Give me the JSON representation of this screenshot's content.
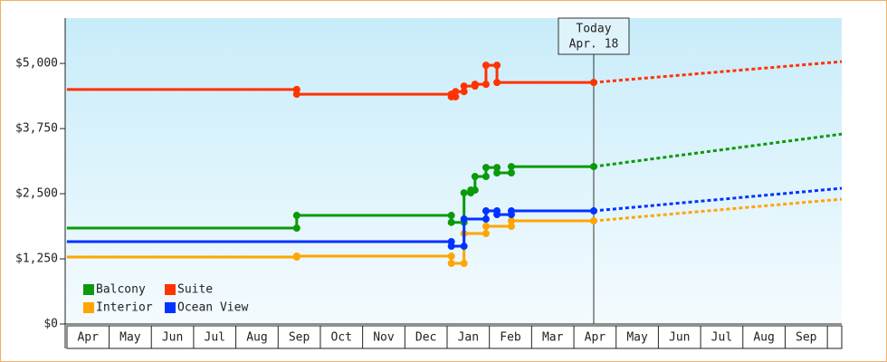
{
  "chart_data": {
    "type": "step-line",
    "annotation": {
      "lines": [
        "Today",
        "Apr. 18"
      ],
      "x": 12.47
    },
    "xlim": [
      -0.04,
      18.34
    ],
    "xticks": [
      {
        "value": 0.5,
        "label": "Apr"
      },
      {
        "value": 1.5,
        "label": "May"
      },
      {
        "value": 2.5,
        "label": "Jun"
      },
      {
        "value": 3.5,
        "label": "Jul"
      },
      {
        "value": 4.5,
        "label": "Aug"
      },
      {
        "value": 5.5,
        "label": "Sep"
      },
      {
        "value": 6.5,
        "label": "Oct"
      },
      {
        "value": 7.5,
        "label": "Nov"
      },
      {
        "value": 8.5,
        "label": "Dec"
      },
      {
        "value": 9.5,
        "label": "Jan"
      },
      {
        "value": 10.5,
        "label": "Feb"
      },
      {
        "value": 11.5,
        "label": "Mar"
      },
      {
        "value": 12.5,
        "label": "Apr"
      },
      {
        "value": 13.5,
        "label": "May"
      },
      {
        "value": 14.5,
        "label": "Jun"
      },
      {
        "value": 15.5,
        "label": "Jul"
      },
      {
        "value": 16.5,
        "label": "Aug"
      },
      {
        "value": 17.5,
        "label": "Sep"
      }
    ],
    "ylim": [
      0,
      5870
    ],
    "yticks": [
      {
        "value": 0,
        "label": "$0"
      },
      {
        "value": 1250,
        "label": "$1,250"
      },
      {
        "value": 2500,
        "label": "$2,500"
      },
      {
        "value": 3750,
        "label": "$3,750"
      },
      {
        "value": 5000,
        "label": "$5,000"
      }
    ],
    "legend": "lower-left",
    "series": [
      {
        "name": "Balcony",
        "color": "#0a9a0a",
        "x": [
          0,
          5.44,
          5.44,
          9.1,
          9.1,
          9.4,
          9.4,
          9.56,
          9.56,
          9.66,
          9.66,
          9.92,
          9.92,
          10.18,
          10.18,
          10.52,
          10.52,
          12.47
        ],
        "values": [
          1840,
          1840,
          2083,
          2083,
          1950,
          1950,
          2517,
          2517,
          2570,
          2570,
          2830,
          2830,
          3003,
          3003,
          2900,
          2900,
          3020,
          3020
        ],
        "forecast": {
          "x": [
            12.47,
            18.34
          ],
          "values": [
            3020,
            3645
          ]
        }
      },
      {
        "name": "Suite",
        "color": "#ff3300",
        "x": [
          0,
          5.44,
          5.44,
          9.1,
          9.1,
          9.2,
          9.2,
          9.4,
          9.4,
          9.66,
          9.66,
          9.92,
          9.92,
          10.18,
          10.18,
          12.47
        ],
        "values": [
          4500,
          4500,
          4410,
          4410,
          4360,
          4360,
          4460,
          4460,
          4565,
          4565,
          4600,
          4600,
          4965,
          4965,
          4635,
          4635
        ],
        "forecast": {
          "x": [
            12.47,
            18.34
          ],
          "values": [
            4635,
            5035
          ]
        }
      },
      {
        "name": "Interior",
        "color": "#ffa500",
        "x": [
          0,
          5.44,
          5.44,
          9.1,
          9.1,
          9.4,
          9.4,
          9.92,
          9.92,
          10.52,
          10.52,
          12.47
        ],
        "values": [
          1285,
          1285,
          1302,
          1302,
          1163,
          1163,
          1736,
          1736,
          1875,
          1875,
          1979,
          1979
        ],
        "forecast": {
          "x": [
            12.47,
            18.34
          ],
          "values": [
            1979,
            2396
          ]
        }
      },
      {
        "name": "Ocean View",
        "color": "#0033ff",
        "x": [
          0,
          9.1,
          9.1,
          9.4,
          9.4,
          9.92,
          9.92,
          10.18,
          10.18,
          10.52,
          10.52,
          12.47
        ],
        "values": [
          1580,
          1580,
          1493,
          1493,
          2014,
          2014,
          2170,
          2170,
          2100,
          2100,
          2170,
          2170
        ],
        "forecast": {
          "x": [
            12.47,
            18.34
          ],
          "values": [
            2170,
            2604
          ]
        }
      }
    ]
  }
}
